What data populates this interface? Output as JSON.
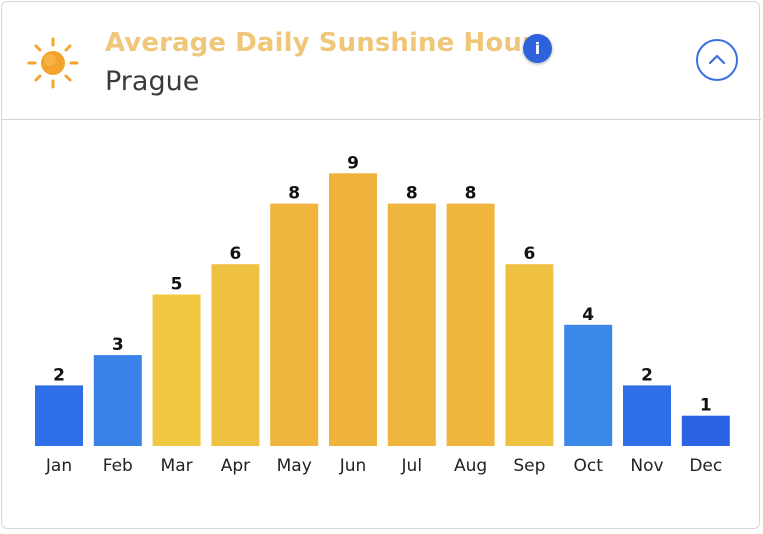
{
  "header": {
    "title": "Average Daily Sunshine Hours",
    "subtitle": "Prague",
    "icon": "sun-icon",
    "info_icon": "info-icon",
    "collapse_icon": "chevron-up-icon",
    "title_color": "#f0c77a",
    "sun_color": "#f4a42c",
    "accent_color": "#2e62dc"
  },
  "chart_data": {
    "type": "bar",
    "categories": [
      "Jan",
      "Feb",
      "Mar",
      "Apr",
      "May",
      "Jun",
      "Jul",
      "Aug",
      "Sep",
      "Oct",
      "Nov",
      "Dec"
    ],
    "values": [
      2,
      3,
      5,
      6,
      8,
      9,
      8,
      8,
      6,
      4,
      2,
      1
    ],
    "bar_colors": [
      "#2e6fe8",
      "#3a82e8",
      "#f0c842",
      "#efc143",
      "#efb53d",
      "#efb33b",
      "#efb53d",
      "#efb53d",
      "#efc143",
      "#3a88e8",
      "#2e6fe8",
      "#2b63e4"
    ],
    "data_labels": true,
    "ylim": [
      0,
      9
    ],
    "grid": false,
    "legend": "none"
  }
}
